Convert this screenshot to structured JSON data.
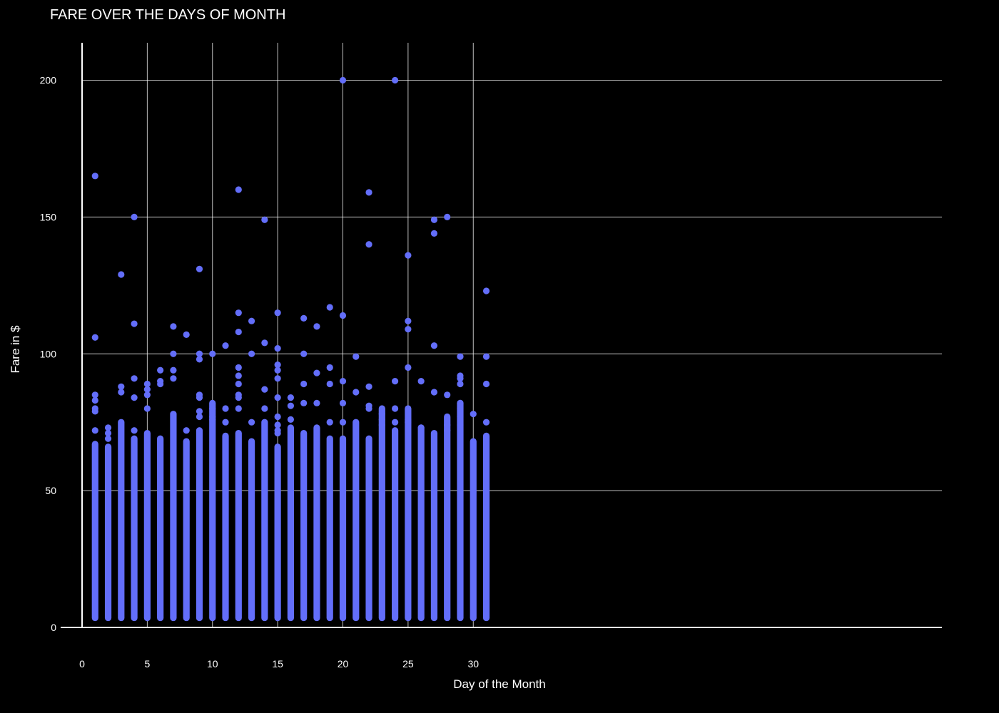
{
  "chart_data": {
    "type": "scatter",
    "title": "FARE OVER THE DAYS OF MONTH",
    "xlabel": "Day of the Month",
    "ylabel": "Fare in $",
    "xlim": [
      -0.6,
      33
    ],
    "ylim": [
      -2,
      215
    ],
    "x_ticks": [
      0,
      5,
      10,
      15,
      20,
      25,
      30
    ],
    "y_ticks": [
      0,
      50,
      100,
      150,
      200
    ],
    "grid": true,
    "colors": {
      "background": "#000000",
      "grid": "#ffffff",
      "marker": "#636efa",
      "text": "#ffffff"
    },
    "series": [
      {
        "name": "fare",
        "dense_columns": [
          {
            "day": 1,
            "min": 3.5,
            "max": 67
          },
          {
            "day": 2,
            "min": 3.5,
            "max": 66
          },
          {
            "day": 3,
            "min": 3.5,
            "max": 75
          },
          {
            "day": 4,
            "min": 3.5,
            "max": 69
          },
          {
            "day": 5,
            "min": 3.5,
            "max": 71
          },
          {
            "day": 6,
            "min": 3.5,
            "max": 69
          },
          {
            "day": 7,
            "min": 3.5,
            "max": 78
          },
          {
            "day": 8,
            "min": 3.5,
            "max": 68
          },
          {
            "day": 9,
            "min": 3.5,
            "max": 72
          },
          {
            "day": 10,
            "min": 3.5,
            "max": 82
          },
          {
            "day": 11,
            "min": 3.5,
            "max": 70
          },
          {
            "day": 12,
            "min": 3.5,
            "max": 71
          },
          {
            "day": 13,
            "min": 3.5,
            "max": 68
          },
          {
            "day": 14,
            "min": 3.5,
            "max": 75
          },
          {
            "day": 15,
            "min": 3.5,
            "max": 66
          },
          {
            "day": 16,
            "min": 3.5,
            "max": 73
          },
          {
            "day": 17,
            "min": 3.5,
            "max": 71
          },
          {
            "day": 18,
            "min": 3.5,
            "max": 73
          },
          {
            "day": 19,
            "min": 3.5,
            "max": 69
          },
          {
            "day": 20,
            "min": 3.5,
            "max": 69
          },
          {
            "day": 21,
            "min": 3.5,
            "max": 75
          },
          {
            "day": 22,
            "min": 3.5,
            "max": 69
          },
          {
            "day": 23,
            "min": 3.5,
            "max": 80
          },
          {
            "day": 24,
            "min": 3.5,
            "max": 72
          },
          {
            "day": 25,
            "min": 3.5,
            "max": 80
          },
          {
            "day": 26,
            "min": 3.5,
            "max": 73
          },
          {
            "day": 27,
            "min": 3.5,
            "max": 71
          },
          {
            "day": 28,
            "min": 3.5,
            "max": 77
          },
          {
            "day": 29,
            "min": 3.5,
            "max": 82
          },
          {
            "day": 30,
            "min": 3.5,
            "max": 68
          },
          {
            "day": 31,
            "min": 3.5,
            "max": 70
          }
        ],
        "points": [
          [
            1,
            165
          ],
          [
            1,
            106
          ],
          [
            1,
            85
          ],
          [
            1,
            83
          ],
          [
            1,
            80
          ],
          [
            1,
            79
          ],
          [
            1,
            72
          ],
          [
            2,
            73
          ],
          [
            2,
            71
          ],
          [
            2,
            69
          ],
          [
            3,
            129
          ],
          [
            3,
            88
          ],
          [
            3,
            86
          ],
          [
            4,
            150
          ],
          [
            4,
            111
          ],
          [
            4,
            91
          ],
          [
            4,
            84
          ],
          [
            4,
            72
          ],
          [
            5,
            89
          ],
          [
            5,
            87
          ],
          [
            5,
            85
          ],
          [
            5,
            80
          ],
          [
            6,
            94
          ],
          [
            6,
            90
          ],
          [
            6,
            89
          ],
          [
            7,
            110
          ],
          [
            7,
            100
          ],
          [
            7,
            94
          ],
          [
            7,
            91
          ],
          [
            8,
            107
          ],
          [
            8,
            72
          ],
          [
            9,
            131
          ],
          [
            9,
            100
          ],
          [
            9,
            98
          ],
          [
            9,
            85
          ],
          [
            9,
            84
          ],
          [
            9,
            79
          ],
          [
            9,
            77
          ],
          [
            10,
            100
          ],
          [
            10,
            80
          ],
          [
            10,
            77
          ],
          [
            10,
            76
          ],
          [
            11,
            103
          ],
          [
            11,
            80
          ],
          [
            11,
            75
          ],
          [
            12,
            160
          ],
          [
            12,
            115
          ],
          [
            12,
            108
          ],
          [
            12,
            95
          ],
          [
            12,
            92
          ],
          [
            12,
            89
          ],
          [
            12,
            85
          ],
          [
            12,
            84
          ],
          [
            12,
            80
          ],
          [
            13,
            112
          ],
          [
            13,
            100
          ],
          [
            13,
            75
          ],
          [
            14,
            149
          ],
          [
            14,
            104
          ],
          [
            14,
            87
          ],
          [
            14,
            80
          ],
          [
            15,
            115
          ],
          [
            15,
            102
          ],
          [
            15,
            96
          ],
          [
            15,
            94
          ],
          [
            15,
            91
          ],
          [
            15,
            84
          ],
          [
            15,
            77
          ],
          [
            15,
            74
          ],
          [
            15,
            72
          ],
          [
            15,
            71
          ],
          [
            16,
            84
          ],
          [
            16,
            81
          ],
          [
            16,
            76
          ],
          [
            17,
            113
          ],
          [
            17,
            100
          ],
          [
            17,
            89
          ],
          [
            17,
            82
          ],
          [
            18,
            110
          ],
          [
            18,
            93
          ],
          [
            18,
            82
          ],
          [
            19,
            117
          ],
          [
            19,
            95
          ],
          [
            19,
            89
          ],
          [
            19,
            75
          ],
          [
            20,
            200
          ],
          [
            20,
            114
          ],
          [
            20,
            90
          ],
          [
            20,
            82
          ],
          [
            20,
            75
          ],
          [
            21,
            99
          ],
          [
            21,
            86
          ],
          [
            22,
            159
          ],
          [
            22,
            140
          ],
          [
            22,
            88
          ],
          [
            22,
            81
          ],
          [
            22,
            80
          ],
          [
            23,
            78
          ],
          [
            23,
            76
          ],
          [
            23,
            74
          ],
          [
            24,
            200
          ],
          [
            24,
            90
          ],
          [
            24,
            80
          ],
          [
            24,
            75
          ],
          [
            25,
            136
          ],
          [
            25,
            112
          ],
          [
            25,
            109
          ],
          [
            25,
            95
          ],
          [
            25,
            76
          ],
          [
            25,
            75
          ],
          [
            26,
            90
          ],
          [
            26,
            73
          ],
          [
            27,
            149
          ],
          [
            27,
            144
          ],
          [
            27,
            103
          ],
          [
            27,
            86
          ],
          [
            28,
            150
          ],
          [
            28,
            85
          ],
          [
            28,
            74
          ],
          [
            28,
            72
          ],
          [
            29,
            99
          ],
          [
            29,
            92
          ],
          [
            29,
            91
          ],
          [
            29,
            89
          ],
          [
            29,
            82
          ],
          [
            29,
            80
          ],
          [
            29,
            77
          ],
          [
            29,
            74
          ],
          [
            30,
            78
          ],
          [
            31,
            123
          ],
          [
            31,
            99
          ],
          [
            31,
            89
          ],
          [
            31,
            75
          ]
        ]
      }
    ]
  }
}
